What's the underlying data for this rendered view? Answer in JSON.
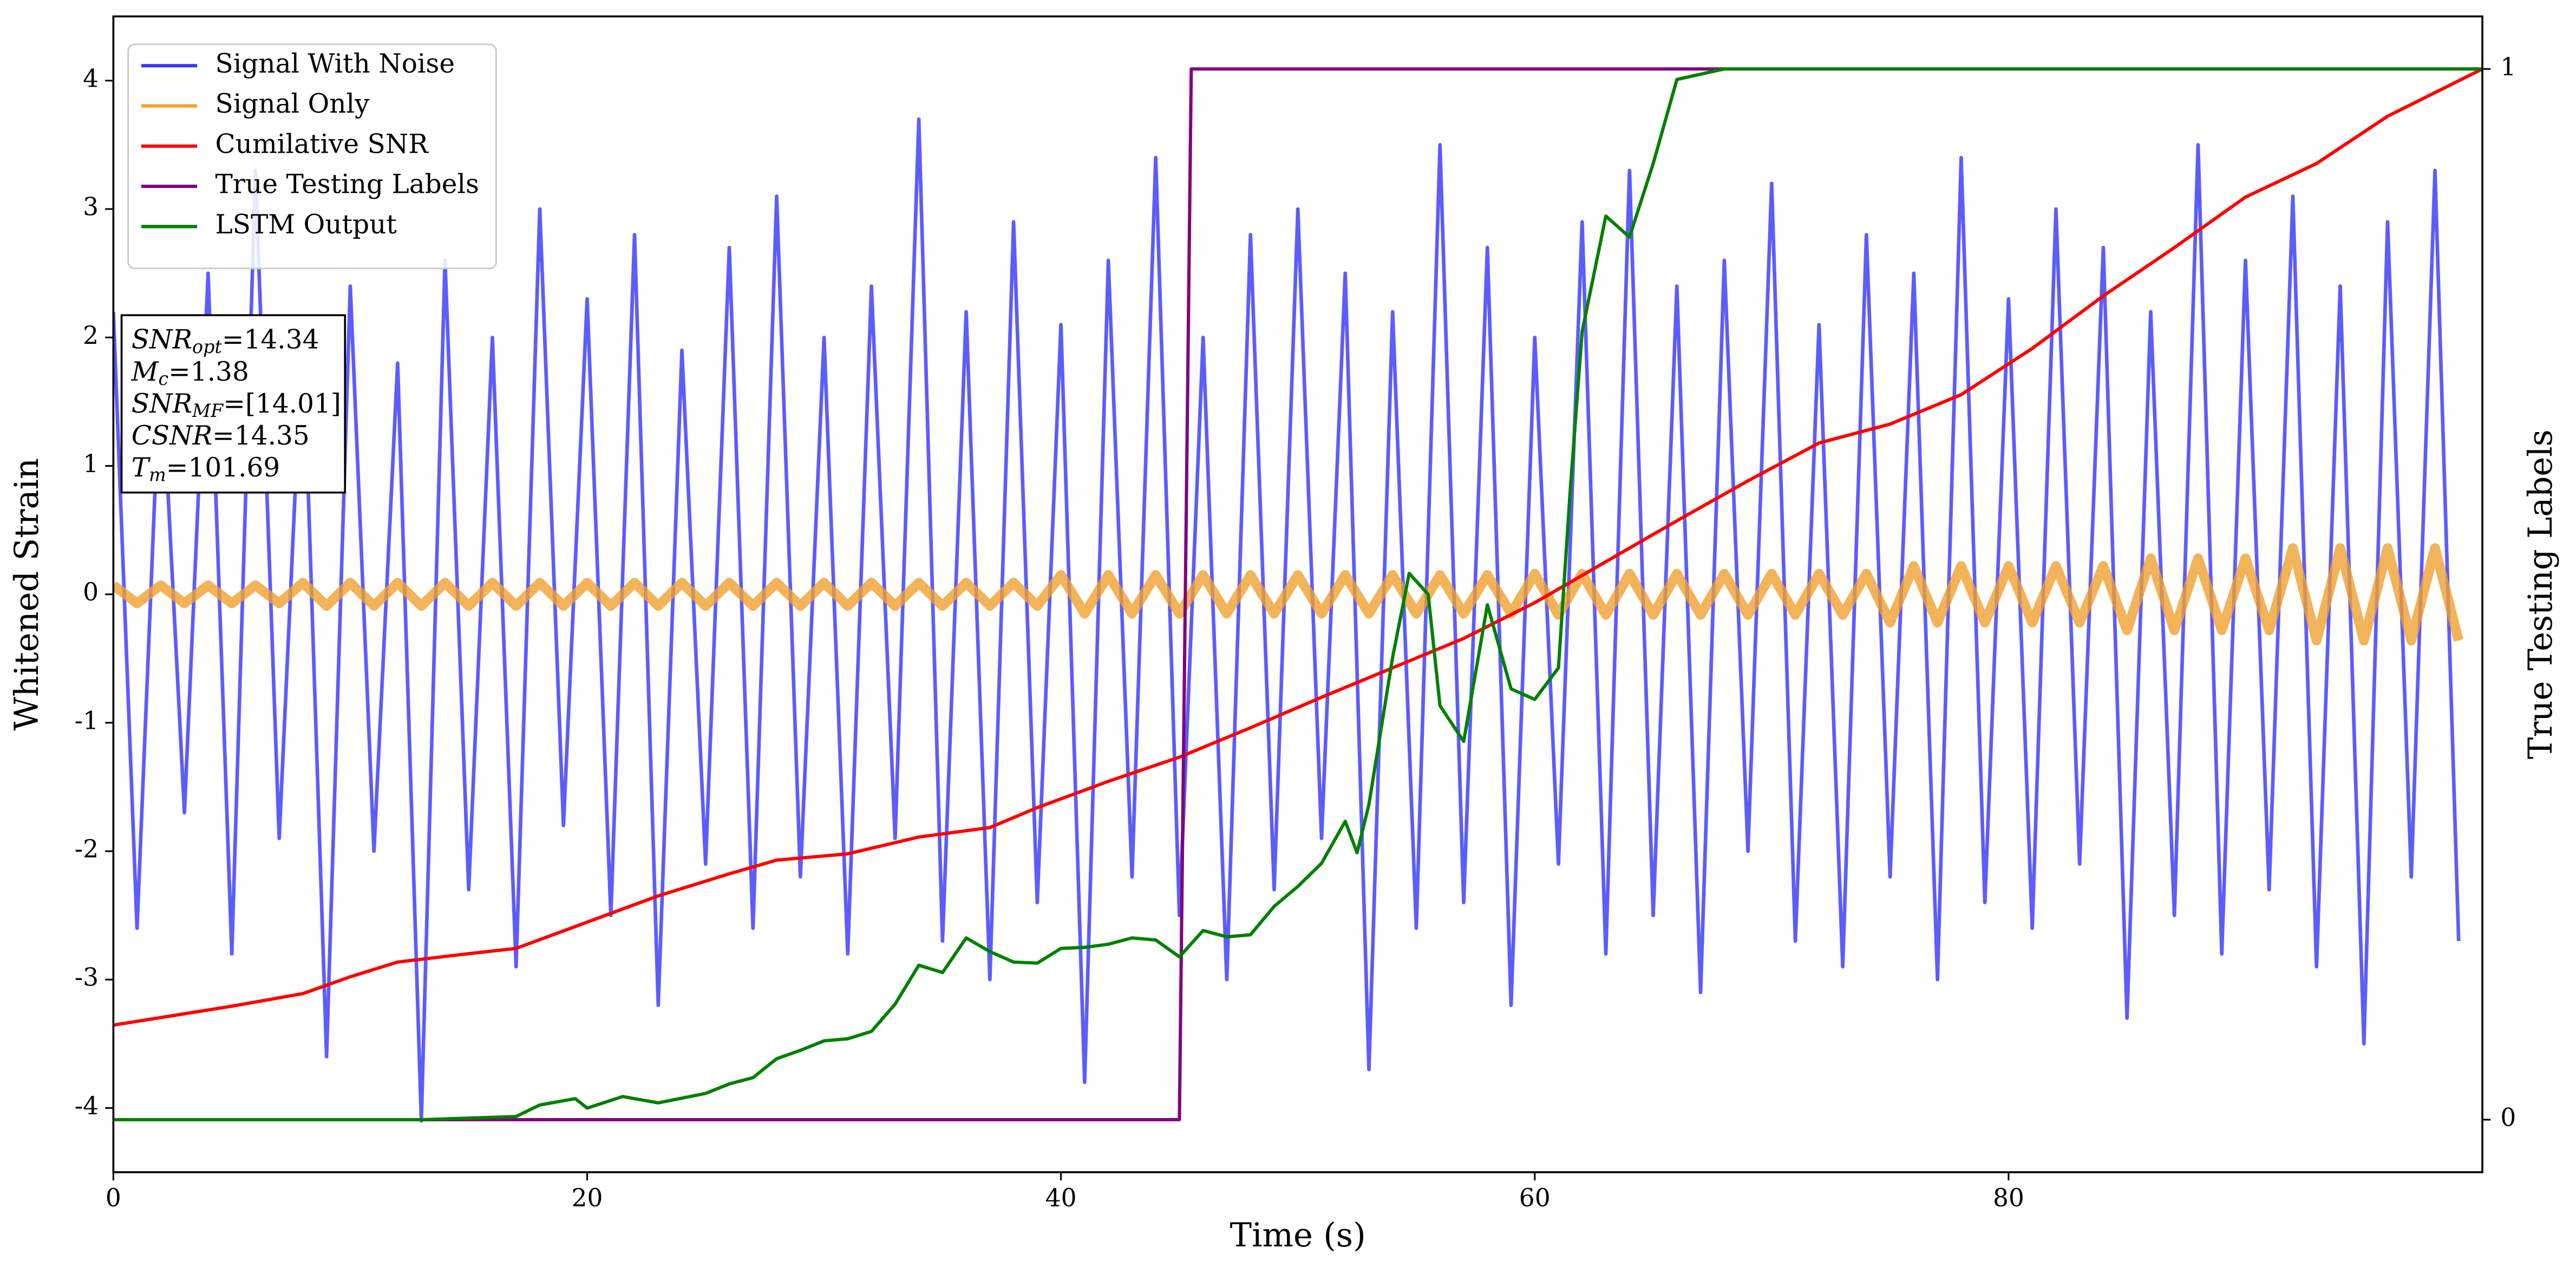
{
  "chart_data": {
    "type": "line",
    "x_label": "Time (s)",
    "y_label": "Whitened Strain",
    "y2_label": "True Testing Labels",
    "xlim": [
      0,
      100
    ],
    "xticks": [
      0,
      20,
      40,
      60,
      80
    ],
    "ylim": [
      -4.5,
      4.5
    ],
    "yticks": [
      -4,
      -3,
      -2,
      -1,
      0,
      1,
      2,
      3,
      4
    ],
    "y2lim": [
      -0.05,
      1.05
    ],
    "y2ticks": [
      0,
      1
    ],
    "legend": "upper left",
    "annotation": [
      {
        "text": "SNR",
        "sub": "opt",
        "rest": "=14.34"
      },
      {
        "text": "M",
        "sub": "c",
        "rest": "=1.38"
      },
      {
        "text": "SNR",
        "sub": "MF",
        "rest": "=[14.01]"
      },
      {
        "text": "CSNR",
        "rest": "=14.35"
      },
      {
        "text": "T",
        "sub": "m",
        "rest": "=101.69"
      }
    ],
    "series": [
      {
        "name": "Signal With Noise",
        "color": "#3333ff",
        "axis": "y",
        "x": [
          0,
          1,
          2,
          3,
          4,
          5,
          6,
          7,
          8,
          9,
          10,
          11,
          12,
          13,
          14,
          15,
          16,
          17,
          18,
          19,
          20,
          21,
          22,
          23,
          24,
          25,
          26,
          27,
          28,
          29,
          30,
          31,
          32,
          33,
          34,
          35,
          36,
          37,
          38,
          39,
          40,
          41,
          42,
          43,
          44,
          45,
          46,
          47,
          48,
          49,
          50,
          51,
          52,
          53,
          54,
          55,
          56,
          57,
          58,
          59,
          60,
          61,
          62,
          63,
          64,
          65,
          66,
          67,
          68,
          69,
          70,
          71,
          72,
          73,
          74,
          75,
          76,
          77,
          78,
          79,
          80,
          81,
          82,
          83,
          84,
          85,
          86,
          87,
          88,
          89,
          90,
          91,
          92,
          93,
          94,
          95,
          96,
          97,
          98,
          99
        ],
        "values": [
          2.2,
          -2.6,
          1.9,
          -1.7,
          2.5,
          -2.8,
          3.3,
          -1.9,
          2.1,
          -3.6,
          2.4,
          -2.0,
          1.8,
          -4.1,
          2.6,
          -2.3,
          2.0,
          -2.9,
          3.0,
          -1.8,
          2.3,
          -2.5,
          2.8,
          -3.2,
          1.9,
          -2.1,
          2.7,
          -2.6,
          3.1,
          -2.2,
          2.0,
          -2.8,
          2.4,
          -1.9,
          3.7,
          -2.7,
          2.2,
          -3.0,
          2.9,
          -2.4,
          2.1,
          -3.8,
          2.6,
          -2.2,
          3.4,
          -2.5,
          2.0,
          -3.0,
          2.8,
          -2.3,
          3.0,
          -1.9,
          2.5,
          -3.7,
          2.2,
          -2.6,
          3.5,
          -2.4,
          2.7,
          -3.2,
          2.0,
          -2.1,
          2.9,
          -2.8,
          3.3,
          -2.5,
          2.4,
          -3.1,
          2.6,
          -2.0,
          3.2,
          -2.7,
          2.1,
          -2.9,
          2.8,
          -2.2,
          2.5,
          -3.0,
          3.4,
          -2.4,
          2.3,
          -2.6,
          3.0,
          -2.1,
          2.7,
          -3.3,
          2.2,
          -2.5,
          3.5,
          -2.8,
          2.6,
          -2.3,
          3.1,
          -2.9,
          2.4,
          -3.5,
          2.9,
          -2.2,
          3.3,
          -2.7
        ]
      },
      {
        "name": "Signal Only",
        "color": "#f0a030",
        "axis": "y",
        "x": [
          0,
          1,
          2,
          3,
          4,
          5,
          6,
          7,
          8,
          9,
          10,
          11,
          12,
          13,
          14,
          15,
          16,
          17,
          18,
          19,
          20,
          21,
          22,
          23,
          24,
          25,
          26,
          27,
          28,
          29,
          30,
          31,
          32,
          33,
          34,
          35,
          36,
          37,
          38,
          39,
          40,
          41,
          42,
          43,
          44,
          45,
          46,
          47,
          48,
          49,
          50,
          51,
          52,
          53,
          54,
          55,
          56,
          57,
          58,
          59,
          60,
          61,
          62,
          63,
          64,
          65,
          66,
          67,
          68,
          69,
          70,
          71,
          72,
          73,
          74,
          75,
          76,
          77,
          78,
          79,
          80,
          81,
          82,
          83,
          84,
          85,
          86,
          87,
          88,
          89,
          90,
          91,
          92,
          93,
          94,
          95,
          96,
          97,
          98,
          99
        ],
        "values": [
          0.07,
          -0.07,
          0.07,
          -0.07,
          0.07,
          -0.07,
          0.07,
          -0.07,
          0.09,
          -0.09,
          0.09,
          -0.09,
          0.09,
          -0.09,
          0.09,
          -0.09,
          0.09,
          -0.09,
          0.09,
          -0.09,
          0.09,
          -0.09,
          0.09,
          -0.09,
          0.09,
          -0.09,
          0.09,
          -0.09,
          0.09,
          -0.09,
          0.09,
          -0.09,
          0.09,
          -0.09,
          0.09,
          -0.09,
          0.09,
          -0.09,
          0.09,
          -0.09,
          0.15,
          -0.15,
          0.15,
          -0.15,
          0.15,
          -0.15,
          0.15,
          -0.15,
          0.15,
          -0.15,
          0.15,
          -0.15,
          0.15,
          -0.15,
          0.15,
          -0.15,
          0.15,
          -0.15,
          0.15,
          -0.15,
          0.16,
          -0.16,
          0.16,
          -0.16,
          0.16,
          -0.16,
          0.16,
          -0.16,
          0.16,
          -0.16,
          0.16,
          -0.16,
          0.16,
          -0.16,
          0.16,
          -0.22,
          0.22,
          -0.22,
          0.22,
          -0.22,
          0.22,
          -0.22,
          0.22,
          -0.22,
          0.22,
          -0.28,
          0.28,
          -0.28,
          0.28,
          -0.28,
          0.28,
          -0.28,
          0.36,
          -0.36,
          0.36,
          -0.36,
          0.36,
          -0.36,
          0.36,
          -0.36
        ]
      },
      {
        "name": "Cumilative SNR",
        "color": "#ff0000",
        "axis": "y2",
        "x": [
          0,
          5,
          8,
          10,
          12,
          15,
          17,
          20,
          23,
          26,
          28,
          31,
          34,
          37,
          39,
          42,
          45,
          48,
          51,
          54,
          57,
          60,
          63,
          66,
          69,
          72,
          75,
          78,
          81,
          84,
          87,
          90,
          93,
          96,
          100
        ],
        "values": [
          0.09,
          0.108,
          0.12,
          0.136,
          0.15,
          0.158,
          0.163,
          0.188,
          0.213,
          0.234,
          0.247,
          0.253,
          0.269,
          0.278,
          0.297,
          0.322,
          0.345,
          0.373,
          0.402,
          0.43,
          0.458,
          0.492,
          0.531,
          0.57,
          0.608,
          0.644,
          0.662,
          0.69,
          0.734,
          0.784,
          0.83,
          0.878,
          0.91,
          0.955,
          1
        ]
      },
      {
        "name": "True Testing Labels",
        "color": "#800080",
        "axis": "y2",
        "x": [
          0,
          45,
          45.5,
          100
        ],
        "values": [
          0,
          0,
          1,
          1
        ]
      },
      {
        "name": "LSTM Output",
        "color": "#008000",
        "axis": "y2",
        "x": [
          0,
          13,
          17,
          18,
          19.5,
          20,
          21.5,
          23,
          25,
          26,
          27,
          28,
          29,
          30,
          31,
          32,
          33,
          34,
          35,
          36,
          37,
          38,
          39,
          40,
          41,
          42,
          43,
          44,
          45,
          46,
          47,
          48,
          49,
          50,
          51,
          52,
          52.5,
          53,
          54,
          54.7,
          55.5,
          56,
          57,
          58,
          59,
          60,
          61,
          61.5,
          62,
          63,
          64,
          65,
          66,
          68,
          100
        ],
        "values": [
          0,
          0,
          0.003,
          0.014,
          0.02,
          0.011,
          0.022,
          0.016,
          0.025,
          0.034,
          0.04,
          0.058,
          0.066,
          0.075,
          0.077,
          0.084,
          0.11,
          0.147,
          0.14,
          0.173,
          0.16,
          0.15,
          0.149,
          0.163,
          0.164,
          0.167,
          0.173,
          0.171,
          0.155,
          0.18,
          0.174,
          0.176,
          0.203,
          0.222,
          0.244,
          0.284,
          0.254,
          0.3,
          0.44,
          0.52,
          0.5,
          0.394,
          0.36,
          0.49,
          0.41,
          0.4,
          0.43,
          0.6,
          0.75,
          0.86,
          0.84,
          0.91,
          0.99,
          1,
          1
        ]
      }
    ]
  }
}
